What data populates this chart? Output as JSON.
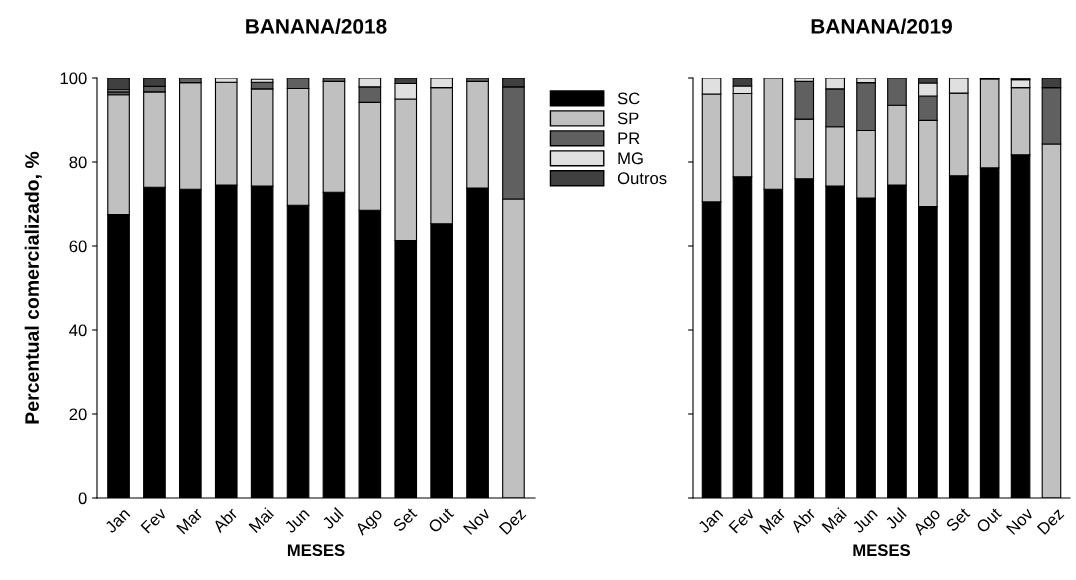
{
  "chart_data": [
    {
      "type": "bar",
      "stacked": true,
      "title": "BANANA/2018",
      "xlabel": "MESES",
      "ylabel": "Percentual comercializado, %",
      "categories": [
        "Jan",
        "Fev",
        "Mar",
        "Abr",
        "Mai",
        "Jun",
        "Jul",
        "Ago",
        "Set",
        "Out",
        "Nov",
        "Dez"
      ],
      "ylim": [
        0,
        100
      ],
      "yticks": [
        0,
        20,
        40,
        60,
        80,
        100
      ],
      "legend": "top right",
      "grid": false,
      "series": [
        {
          "name": "SC",
          "color": "#000000",
          "values": [
            67.5,
            74,
            73.5,
            74.5,
            74.3,
            69.7,
            72.8,
            68.5,
            61.3,
            65.3,
            73.8,
            0
          ]
        },
        {
          "name": "SP",
          "color": "#c0c0c0",
          "values": [
            28.5,
            22.7,
            25.4,
            24.5,
            23.1,
            27.8,
            26.4,
            25.7,
            33.7,
            32.4,
            25.4,
            71.2
          ]
        },
        {
          "name": "PR",
          "color": "#606060",
          "values": [
            0.7,
            1.3,
            1.1,
            0,
            1.6,
            2.5,
            0.8,
            3.7,
            0,
            0,
            0.8,
            26.7
          ]
        },
        {
          "name": "MG",
          "color": "#e0e0e0",
          "values": [
            0.5,
            0,
            0,
            1.0,
            0.7,
            0,
            0,
            2.1,
            3.7,
            2.3,
            0,
            0
          ]
        },
        {
          "name": "Outros",
          "color": "#404040",
          "values": [
            2.8,
            2,
            0,
            0,
            0,
            0,
            0,
            0,
            1.3,
            0,
            0,
            2.1
          ]
        }
      ]
    },
    {
      "type": "bar",
      "stacked": true,
      "title": "BANANA/2019",
      "xlabel": "MESES",
      "categories": [
        "Jan",
        "Fev",
        "Mar",
        "Abr",
        "Mai",
        "Jun",
        "Jul",
        "Ago",
        "Set",
        "Out",
        "Nov",
        "Dez"
      ],
      "ylim": [
        0,
        100
      ],
      "yticks": [
        0,
        20,
        40,
        60,
        80,
        100
      ],
      "tick_labels": "x",
      "grid": false,
      "series": [
        {
          "color": "#000000",
          "values": [
            70.5,
            76.5,
            73.5,
            76,
            74.3,
            71.4,
            74.5,
            69.4,
            76.7,
            78.6,
            81.7,
            0
          ]
        },
        {
          "color": "#c0c0c0",
          "values": [
            25.7,
            19.8,
            26.5,
            14.2,
            14.1,
            16.1,
            19,
            20.5,
            19.7,
            21.2,
            16,
            84.3
          ]
        },
        {
          "color": "#606060",
          "values": [
            0,
            0,
            0,
            9.0,
            9.0,
            11.4,
            6.5,
            5.8,
            0,
            0,
            0,
            13.4
          ]
        },
        {
          "color": "#e0e0e0",
          "values": [
            3.8,
            1.8,
            0,
            0.8,
            2.6,
            1.1,
            0,
            3.1,
            3.6,
            0,
            1.9,
            0
          ]
        },
        {
          "color": "#404040",
          "values": [
            0,
            1.9,
            0,
            0,
            0,
            0,
            0,
            1.2,
            0,
            0.2,
            0.4,
            2.3
          ]
        }
      ]
    }
  ]
}
